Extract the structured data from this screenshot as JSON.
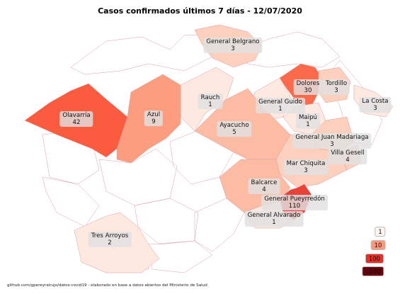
{
  "title": "Casos confirmados últimos 7 días - 12/07/2020",
  "footer": "github.com/gpereyrairujo/datos-covid19 - elaborado en base a datos abiertos del Ministerio de Salud",
  "colors": {
    "c1": "#fde9e0",
    "c2": "#fcd0bc",
    "c3": "#fcbca3",
    "c4": "#fc9d7f",
    "c5": "#fb6a4a",
    "c6": "#e8413a",
    "c7": "#67000d",
    "border": "#d8a0a8",
    "label_bg": "#e1e1e1"
  },
  "legend": [
    {
      "label": "1",
      "color": "#fff5f0",
      "text_color": "#111"
    },
    {
      "label": "10",
      "color": "#fc9879",
      "text_color": "#111"
    },
    {
      "label": "100",
      "color": "#e32f27",
      "text_color": "#111"
    },
    {
      "label": "1000",
      "color": "#67000d",
      "text_color": "#111"
    }
  ],
  "districts": [
    {
      "name": "General Belgrano",
      "cases": "3"
    },
    {
      "name": "Dolores",
      "cases": "30"
    },
    {
      "name": "Tordillo",
      "cases": "3"
    },
    {
      "name": "Rauch",
      "cases": "1"
    },
    {
      "name": "General Guido",
      "cases": "1"
    },
    {
      "name": "La Costa",
      "cases": "3"
    },
    {
      "name": "Olavarría",
      "cases": "42"
    },
    {
      "name": "Azul",
      "cases": "9"
    },
    {
      "name": "Maipú",
      "cases": "1"
    },
    {
      "name": "Ayacucho",
      "cases": "5"
    },
    {
      "name": "General Juan Madariaga",
      "cases": "3"
    },
    {
      "name": "Villa Gesell",
      "cases": "4"
    },
    {
      "name": "Mar Chiquita",
      "cases": "3"
    },
    {
      "name": "Balcarce",
      "cases": "4"
    },
    {
      "name": "General Pueyrredón",
      "cases": "110"
    },
    {
      "name": "General Alvarado",
      "cases": "1"
    },
    {
      "name": "Tres Arroyos",
      "cases": "2"
    }
  ]
}
